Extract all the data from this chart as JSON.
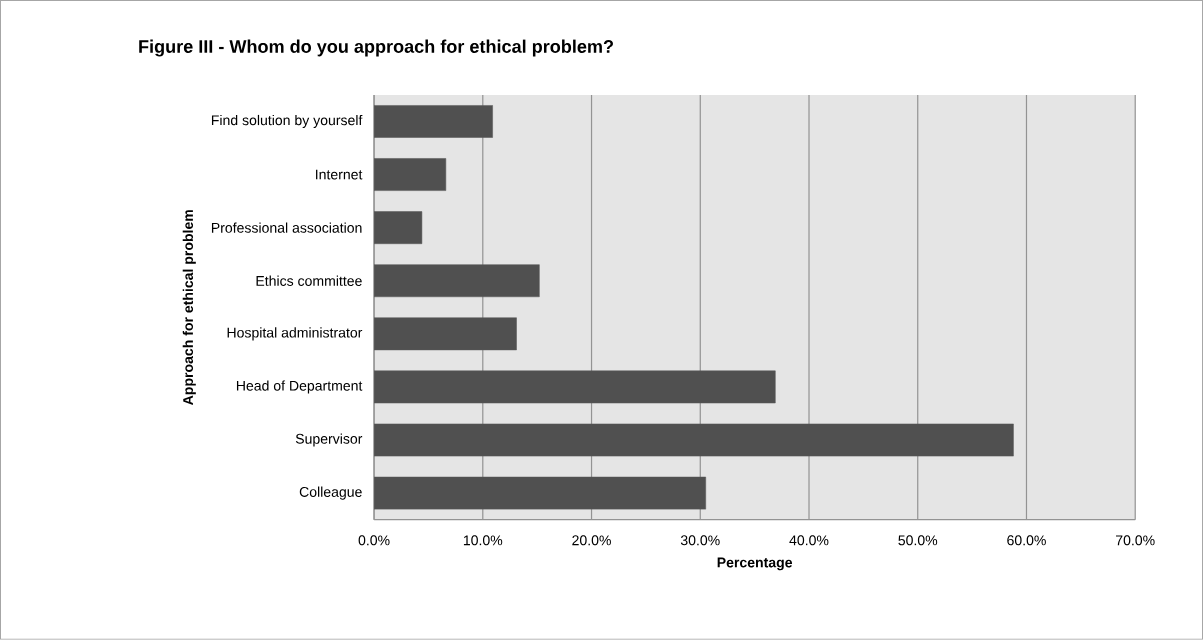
{
  "chart_data": {
    "type": "bar",
    "orientation": "horizontal",
    "title": "Figure III - Whom do you approach for ethical problem?",
    "xlabel": "Percentage",
    "ylabel": "Approach for ethical problem",
    "categories": [
      "Find solution by yourself",
      "Internet",
      "Professional association",
      "Ethics committee",
      "Hospital administrator",
      "Head of Department",
      "Supervisor",
      "Colleague"
    ],
    "values": [
      10.9,
      6.6,
      4.4,
      15.2,
      13.1,
      36.9,
      58.8,
      30.5
    ],
    "color": "#505050",
    "xlim": [
      0,
      70
    ],
    "xticks": [
      {
        "value": 0,
        "label": "0.0%"
      },
      {
        "value": 10,
        "label": "10.0%"
      },
      {
        "value": 20,
        "label": "20.0%"
      },
      {
        "value": 30,
        "label": "30.0%"
      },
      {
        "value": 40,
        "label": "40.0%"
      },
      {
        "value": 50,
        "label": "50.0%"
      },
      {
        "value": 60,
        "label": "60.0%"
      },
      {
        "value": 70,
        "label": "70.0%"
      }
    ],
    "grid": "x"
  }
}
